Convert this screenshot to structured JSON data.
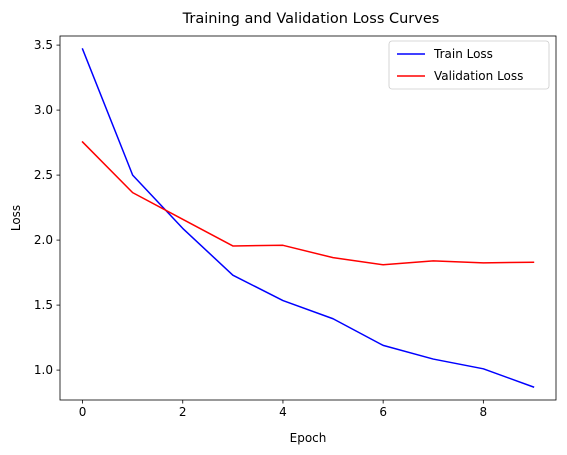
{
  "chart_data": {
    "type": "line",
    "title": "Training and Validation Loss Curves",
    "xlabel": "Epoch",
    "ylabel": "Loss",
    "x": [
      0,
      1,
      2,
      3,
      4,
      5,
      6,
      7,
      8,
      9
    ],
    "xlim": [
      -0.45,
      9.45
    ],
    "ylim": [
      0.77,
      3.57
    ],
    "xticks": [
      0,
      2,
      4,
      6,
      8
    ],
    "yticks": [
      1.0,
      1.5,
      2.0,
      2.5,
      3.0,
      3.5
    ],
    "xtick_labels": [
      "0",
      "2",
      "4",
      "6",
      "8"
    ],
    "ytick_labels": [
      "1.0",
      "1.5",
      "2.0",
      "2.5",
      "3.0",
      "3.5"
    ],
    "grid": false,
    "legend_position": "top-right",
    "series": [
      {
        "name": "Train Loss",
        "color": "#0000ff",
        "values": [
          3.47,
          2.5,
          2.09,
          1.73,
          1.535,
          1.395,
          1.19,
          1.085,
          1.01,
          0.87
        ]
      },
      {
        "name": "Validation Loss",
        "color": "#ff0000",
        "values": [
          2.755,
          2.365,
          2.16,
          1.955,
          1.96,
          1.865,
          1.81,
          1.84,
          1.825,
          1.83
        ]
      }
    ]
  }
}
